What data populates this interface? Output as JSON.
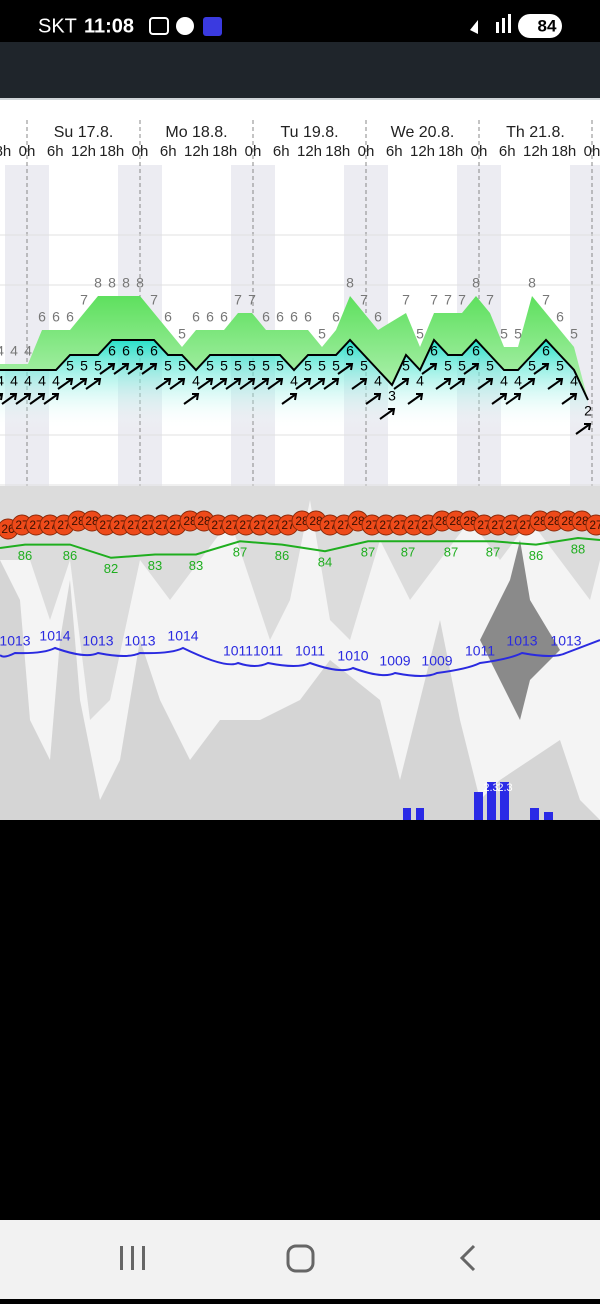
{
  "status_bar": {
    "carrier": "SKT",
    "time": "11:08",
    "battery": "84"
  },
  "days": [
    "Su 17.8.",
    "Mo 18.8.",
    "Tu 19.8.",
    "We 20.8.",
    "Th 21.8."
  ],
  "hour_labels": [
    "0h",
    "6h",
    "12h",
    "18h"
  ],
  "wind_mean": [
    "4",
    "4",
    "4",
    "4",
    "4",
    "5",
    "5",
    "5",
    "6",
    "6",
    "6",
    "6",
    "5",
    "5",
    "4",
    "5",
    "5",
    "5",
    "5",
    "5",
    "5",
    "4",
    "5",
    "5",
    "5",
    "6",
    "5",
    "4",
    "3",
    "5",
    "4",
    "6",
    "5",
    "5",
    "6",
    "5",
    "4",
    "4",
    "5",
    "6",
    "5",
    "4",
    "2"
  ],
  "wind_gust": [
    "4",
    "4",
    "4",
    "6",
    "6",
    "6",
    "7",
    "8",
    "8",
    "8",
    "8",
    "7",
    "6",
    "5",
    "6",
    "6",
    "6",
    "7",
    "7",
    "6",
    "6",
    "6",
    "6",
    "5",
    "6",
    "8",
    "7",
    "6",
    null,
    "7",
    "5",
    "7",
    "7",
    "7",
    "8",
    "7",
    "5",
    "5",
    "8",
    "7",
    "6",
    "5",
    null
  ],
  "temperature": [
    "26",
    "27",
    "27",
    "27",
    "27",
    "28",
    "28",
    "27",
    "27",
    "27",
    "27",
    "27",
    "27",
    "28",
    "28",
    "27",
    "27",
    "27",
    "27",
    "27",
    "27",
    "28",
    "28",
    "27",
    "27",
    "28",
    "27",
    "27",
    "27",
    "27",
    "27",
    "28",
    "28",
    "28",
    "27",
    "27",
    "27",
    "27",
    "28",
    "28",
    "28",
    "28",
    "27"
  ],
  "humidity": [
    "86",
    "86",
    "82",
    "83",
    "83",
    "87",
    "86",
    "84",
    "87",
    "87",
    "87",
    "87",
    "86",
    "88"
  ],
  "pressure": [
    "1013",
    "1014",
    "1013",
    "1013",
    "1014",
    "1011",
    "1011",
    "1011",
    "1010",
    "1009",
    "1009",
    "1011",
    "1013",
    "1013"
  ],
  "precipitation_labels": [
    "2.3",
    "2.3"
  ]
}
